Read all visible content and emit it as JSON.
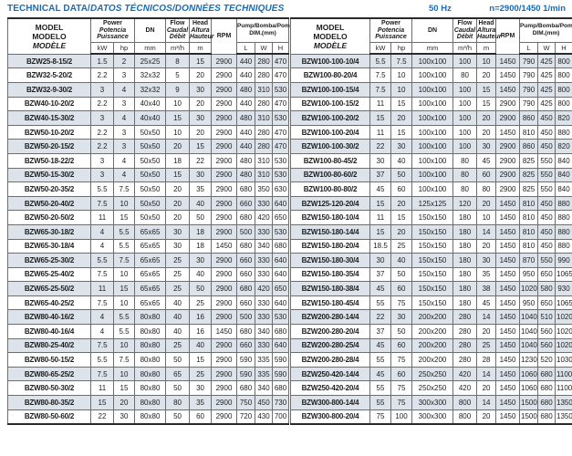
{
  "title": {
    "plain": "TECHNICAL DATA/",
    "italic": "DATOS TÉCNICOS/DONNÉES TECHNIQUES"
  },
  "frequency_note": {
    "hz": "50 Hz",
    "speed": "n=2900/1450 1/min"
  },
  "colors": {
    "accent_blue": "#1a6cb4",
    "row_stripe": "#dce3ea",
    "text": "#1d1d1d"
  },
  "columns": {
    "model": {
      "l1": "MODEL",
      "l2": "MODELO",
      "l3": "MODÈLE"
    },
    "power": {
      "l1": "Power",
      "l2": "Potencia",
      "l3": "Puissance",
      "unit1": "kW",
      "unit2": "hp"
    },
    "dn": {
      "label": "DN",
      "unit": "mm"
    },
    "flow": {
      "l1": "Flow",
      "l2": "Caudal",
      "l3": "Débit",
      "unit": "m³/h"
    },
    "head": {
      "l1": "Head",
      "l2": "Altura",
      "l3": "Hauteur",
      "unit": "m"
    },
    "rpm": {
      "label": "RPM"
    },
    "dim": {
      "line1": "Pump/Bomba/Pompe",
      "line2": "DIM.(mm)",
      "unit1": "L",
      "unit2": "W",
      "unit3": "H"
    }
  },
  "tables": {
    "left": {
      "rows": [
        [
          "BZW25-8-15/2",
          "1.5",
          "2",
          "25x25",
          "8",
          "15",
          "2900",
          "440",
          "280",
          "470"
        ],
        [
          "BZW32-5-20/2",
          "2.2",
          "3",
          "32x32",
          "5",
          "20",
          "2900",
          "440",
          "280",
          "470"
        ],
        [
          "BZW32-9-30/2",
          "3",
          "4",
          "32x32",
          "9",
          "30",
          "2900",
          "480",
          "310",
          "530"
        ],
        [
          "BZW40-10-20/2",
          "2.2",
          "3",
          "40x40",
          "10",
          "20",
          "2900",
          "440",
          "280",
          "470"
        ],
        [
          "BZW40-15-30/2",
          "3",
          "4",
          "40x40",
          "15",
          "30",
          "2900",
          "480",
          "310",
          "530"
        ],
        [
          "BZW50-10-20/2",
          "2.2",
          "3",
          "50x50",
          "10",
          "20",
          "2900",
          "440",
          "280",
          "470"
        ],
        [
          "BZW50-20-15/2",
          "2.2",
          "3",
          "50x50",
          "20",
          "15",
          "2900",
          "440",
          "280",
          "470"
        ],
        [
          "BZW50-18-22/2",
          "3",
          "4",
          "50x50",
          "18",
          "22",
          "2900",
          "480",
          "310",
          "530"
        ],
        [
          "BZW50-15-30/2",
          "3",
          "4",
          "50x50",
          "15",
          "30",
          "2900",
          "480",
          "310",
          "530"
        ],
        [
          "BZW50-20-35/2",
          "5.5",
          "7.5",
          "50x50",
          "20",
          "35",
          "2900",
          "680",
          "350",
          "630"
        ],
        [
          "BZW50-20-40/2",
          "7.5",
          "10",
          "50x50",
          "20",
          "40",
          "2900",
          "660",
          "330",
          "640"
        ],
        [
          "BZW50-20-50/2",
          "11",
          "15",
          "50x50",
          "20",
          "50",
          "2900",
          "680",
          "420",
          "650"
        ],
        [
          "BZW65-30-18/2",
          "4",
          "5.5",
          "65x65",
          "30",
          "18",
          "2900",
          "500",
          "330",
          "530"
        ],
        [
          "BZW65-30-18/4",
          "4",
          "5.5",
          "65x65",
          "30",
          "18",
          "1450",
          "680",
          "340",
          "680"
        ],
        [
          "BZW65-25-30/2",
          "5.5",
          "7.5",
          "65x65",
          "25",
          "30",
          "2900",
          "660",
          "330",
          "640"
        ],
        [
          "BZW65-25-40/2",
          "7.5",
          "10",
          "65x65",
          "25",
          "40",
          "2900",
          "660",
          "330",
          "640"
        ],
        [
          "BZW65-25-50/2",
          "11",
          "15",
          "65x65",
          "25",
          "50",
          "2900",
          "680",
          "420",
          "650"
        ],
        [
          "BZW65-40-25/2",
          "7.5",
          "10",
          "65x65",
          "40",
          "25",
          "2900",
          "660",
          "330",
          "640"
        ],
        [
          "BZW80-40-16/2",
          "4",
          "5.5",
          "80x80",
          "40",
          "16",
          "2900",
          "500",
          "330",
          "530"
        ],
        [
          "BZW80-40-16/4",
          "4",
          "5.5",
          "80x80",
          "40",
          "16",
          "1450",
          "680",
          "340",
          "680"
        ],
        [
          "BZW80-25-40/2",
          "7.5",
          "10",
          "80x80",
          "25",
          "40",
          "2900",
          "660",
          "330",
          "640"
        ],
        [
          "BZW80-50-15/2",
          "5.5",
          "7.5",
          "80x80",
          "50",
          "15",
          "2900",
          "590",
          "335",
          "590"
        ],
        [
          "BZW80-65-25/2",
          "7.5",
          "10",
          "80x80",
          "65",
          "25",
          "2900",
          "590",
          "335",
          "590"
        ],
        [
          "BZW80-50-30/2",
          "11",
          "15",
          "80x80",
          "50",
          "30",
          "2900",
          "680",
          "340",
          "680"
        ],
        [
          "BZW80-80-35/2",
          "15",
          "20",
          "80x80",
          "80",
          "35",
          "2900",
          "750",
          "450",
          "730"
        ],
        [
          "BZW80-50-60/2",
          "22",
          "30",
          "80x80",
          "50",
          "60",
          "2900",
          "720",
          "430",
          "700"
        ]
      ]
    },
    "right": {
      "rows": [
        [
          "BZW100-100-10/4",
          "5.5",
          "7.5",
          "100x100",
          "100",
          "10",
          "1450",
          "790",
          "425",
          "800"
        ],
        [
          "BZW100-80-20/4",
          "7.5",
          "10",
          "100x100",
          "80",
          "20",
          "1450",
          "790",
          "425",
          "800"
        ],
        [
          "BZW100-100-15/4",
          "7.5",
          "10",
          "100x100",
          "100",
          "15",
          "1450",
          "790",
          "425",
          "800"
        ],
        [
          "BZW100-100-15/2",
          "11",
          "15",
          "100x100",
          "100",
          "15",
          "2900",
          "790",
          "425",
          "800"
        ],
        [
          "BZW100-100-20/2",
          "15",
          "20",
          "100x100",
          "100",
          "20",
          "2900",
          "860",
          "450",
          "820"
        ],
        [
          "BZW100-100-20/4",
          "11",
          "15",
          "100x100",
          "100",
          "20",
          "1450",
          "810",
          "450",
          "880"
        ],
        [
          "BZW100-100-30/2",
          "22",
          "30",
          "100x100",
          "100",
          "30",
          "2900",
          "860",
          "450",
          "820"
        ],
        [
          "BZW100-80-45/2",
          "30",
          "40",
          "100x100",
          "80",
          "45",
          "2900",
          "825",
          "550",
          "840"
        ],
        [
          "BZW100-80-60/2",
          "37",
          "50",
          "100x100",
          "80",
          "60",
          "2900",
          "825",
          "550",
          "840"
        ],
        [
          "BZW100-80-80/2",
          "45",
          "60",
          "100x100",
          "80",
          "80",
          "2900",
          "825",
          "550",
          "840"
        ],
        [
          "BZW125-120-20/4",
          "15",
          "20",
          "125x125",
          "120",
          "20",
          "1450",
          "810",
          "450",
          "880"
        ],
        [
          "BZW150-180-10/4",
          "11",
          "15",
          "150x150",
          "180",
          "10",
          "1450",
          "810",
          "450",
          "880"
        ],
        [
          "BZW150-180-14/4",
          "15",
          "20",
          "150x150",
          "180",
          "14",
          "1450",
          "810",
          "450",
          "880"
        ],
        [
          "BZW150-180-20/4",
          "18.5",
          "25",
          "150x150",
          "180",
          "20",
          "1450",
          "810",
          "450",
          "880"
        ],
        [
          "BZW150-180-30/4",
          "30",
          "40",
          "150x150",
          "180",
          "30",
          "1450",
          "870",
          "550",
          "990"
        ],
        [
          "BZW150-180-35/4",
          "37",
          "50",
          "150x150",
          "180",
          "35",
          "1450",
          "950",
          "650",
          "1065"
        ],
        [
          "BZW150-180-38/4",
          "45",
          "60",
          "150x150",
          "180",
          "38",
          "1450",
          "1020",
          "580",
          "930"
        ],
        [
          "BZW150-180-45/4",
          "55",
          "75",
          "150x150",
          "180",
          "45",
          "1450",
          "950",
          "650",
          "1065"
        ],
        [
          "BZW200-280-14/4",
          "22",
          "30",
          "200x200",
          "280",
          "14",
          "1450",
          "1040",
          "510",
          "1020"
        ],
        [
          "BZW200-280-20/4",
          "37",
          "50",
          "200x200",
          "280",
          "20",
          "1450",
          "1040",
          "560",
          "1020"
        ],
        [
          "BZW200-280-25/4",
          "45",
          "60",
          "200x200",
          "280",
          "25",
          "1450",
          "1040",
          "560",
          "1020"
        ],
        [
          "BZW200-280-28/4",
          "55",
          "75",
          "200x200",
          "280",
          "28",
          "1450",
          "1230",
          "520",
          "1030"
        ],
        [
          "BZW250-420-14/4",
          "45",
          "60",
          "250x250",
          "420",
          "14",
          "1450",
          "1060",
          "680",
          "1100"
        ],
        [
          "BZW250-420-20/4",
          "55",
          "75",
          "250x250",
          "420",
          "20",
          "1450",
          "1060",
          "680",
          "1100"
        ],
        [
          "BZW300-800-14/4",
          "55",
          "75",
          "300x300",
          "800",
          "14",
          "1450",
          "1500",
          "680",
          "1350"
        ],
        [
          "BZW300-800-20/4",
          "75",
          "100",
          "300x300",
          "800",
          "20",
          "1450",
          "1500",
          "680",
          "1350"
        ]
      ]
    }
  }
}
